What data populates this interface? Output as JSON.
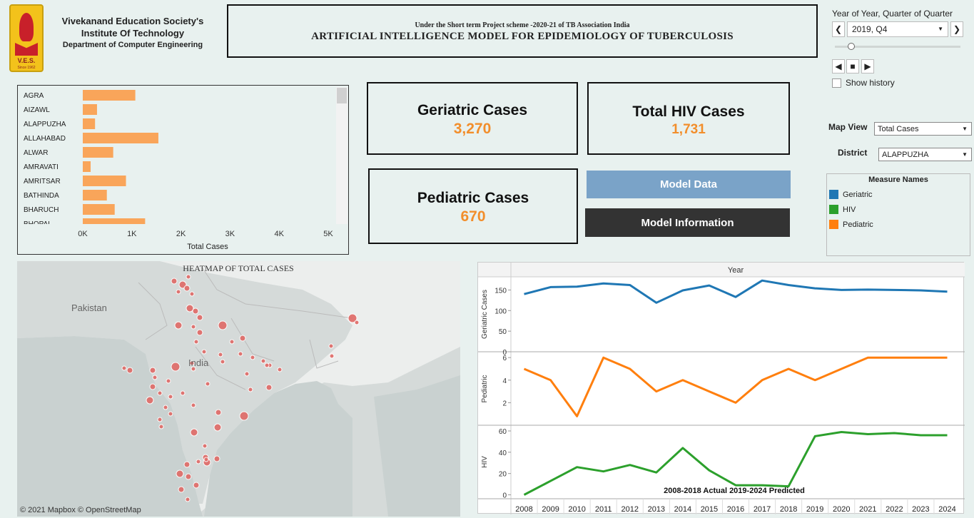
{
  "header": {
    "logo_text": "V.E.S.",
    "logo_since": "Since 1962",
    "inst_line1": "Vivekanand Education Society's",
    "inst_line2": "Institute Of Technology",
    "inst_line3": "Department of Computer Engineering",
    "title_sub": "Under the Short term Project scheme -2020-21 of TB Association India",
    "title_main": "ARTIFICIAL INTELLIGENCE MODEL FOR EPIDEMIOLOGY OF TUBERCULOSIS"
  },
  "year_filter": {
    "label": "Year of Year, Quarter of Quarter",
    "value": "2019, Q4",
    "prev": "❮",
    "next": "❯",
    "show_history": "Show history",
    "slider_fraction": 0.1
  },
  "bar_chart": {
    "chart_data": {
      "type": "bar",
      "orientation": "horizontal",
      "categories": [
        "AGRA",
        "AIZAWL",
        "ALAPPUZHA",
        "ALLAHABAD",
        "ALWAR",
        "AMRAVATI",
        "AMRITSAR",
        "BATHINDA",
        "BHARUCH",
        "BHOPAL"
      ],
      "values": [
        1070,
        290,
        250,
        1540,
        620,
        160,
        880,
        490,
        650,
        1270
      ],
      "xlabel": "Total Cases",
      "xticks": [
        "0K",
        "1K",
        "2K",
        "3K",
        "4K",
        "5K"
      ],
      "xlim": [
        0,
        5000
      ],
      "color": "#f9a55a"
    }
  },
  "kpi": {
    "geriatric_label": "Geriatric Cases",
    "geriatric_value": "3,270",
    "hiv_label": "Total HIV Cases",
    "hiv_value": "1,731",
    "pediatric_label": "Pediatric Cases",
    "pediatric_value": "670"
  },
  "buttons": {
    "model_data": "Model Data",
    "model_info": "Model Information"
  },
  "filters": {
    "map_view_label": "Map View",
    "map_view_value": "Total Cases",
    "district_label": "District",
    "district_value": "ALAPPUZHA"
  },
  "legend": {
    "title": "Measure Names",
    "items": [
      {
        "name": "Geriatric",
        "color": "#1f77b4"
      },
      {
        "name": "HIV",
        "color": "#2ca02c"
      },
      {
        "name": "Pediatric",
        "color": "#ff7f0e"
      }
    ]
  },
  "map": {
    "title": "HEATMAP OF TOTAL CASES",
    "label_pakistan": "Pakistan",
    "label_india": "India",
    "attribution": "© 2021 Mapbox  © OpenStreetMap",
    "point_color": "#e06a66"
  },
  "line_chart": {
    "chart_data": {
      "type": "line",
      "header": "Year",
      "x": [
        2008,
        2009,
        2010,
        2011,
        2012,
        2013,
        2014,
        2015,
        2016,
        2017,
        2018,
        2019,
        2020,
        2021,
        2022,
        2023,
        2024
      ],
      "series": [
        {
          "name": "Geriatric Cases",
          "color": "#1f77b4",
          "yticks": [
            0,
            50,
            100,
            150
          ],
          "ylim": [
            0,
            175
          ],
          "values": [
            140,
            157,
            158,
            166,
            162,
            119,
            149,
            161,
            133,
            173,
            162,
            154,
            150,
            151,
            150,
            149,
            146
          ]
        },
        {
          "name": "Pediatric",
          "color": "#ff7f0e",
          "yticks": [
            2,
            4,
            6
          ],
          "ylim": [
            0,
            6.2
          ],
          "values": [
            5,
            4,
            0.8,
            6,
            5,
            3,
            4,
            3,
            2,
            4,
            5,
            4,
            5,
            6,
            6,
            6,
            6
          ]
        },
        {
          "name": "HIV",
          "color": "#2ca02c",
          "yticks": [
            0,
            20,
            40,
            60
          ],
          "ylim": [
            -3,
            62
          ],
          "values": [
            0,
            13,
            26,
            22,
            28,
            21,
            44,
            23,
            9,
            9,
            8,
            55,
            59,
            57,
            58,
            56,
            56
          ]
        }
      ],
      "annotation": "2008-2018 Actual   2019-2024 Predicted"
    }
  }
}
